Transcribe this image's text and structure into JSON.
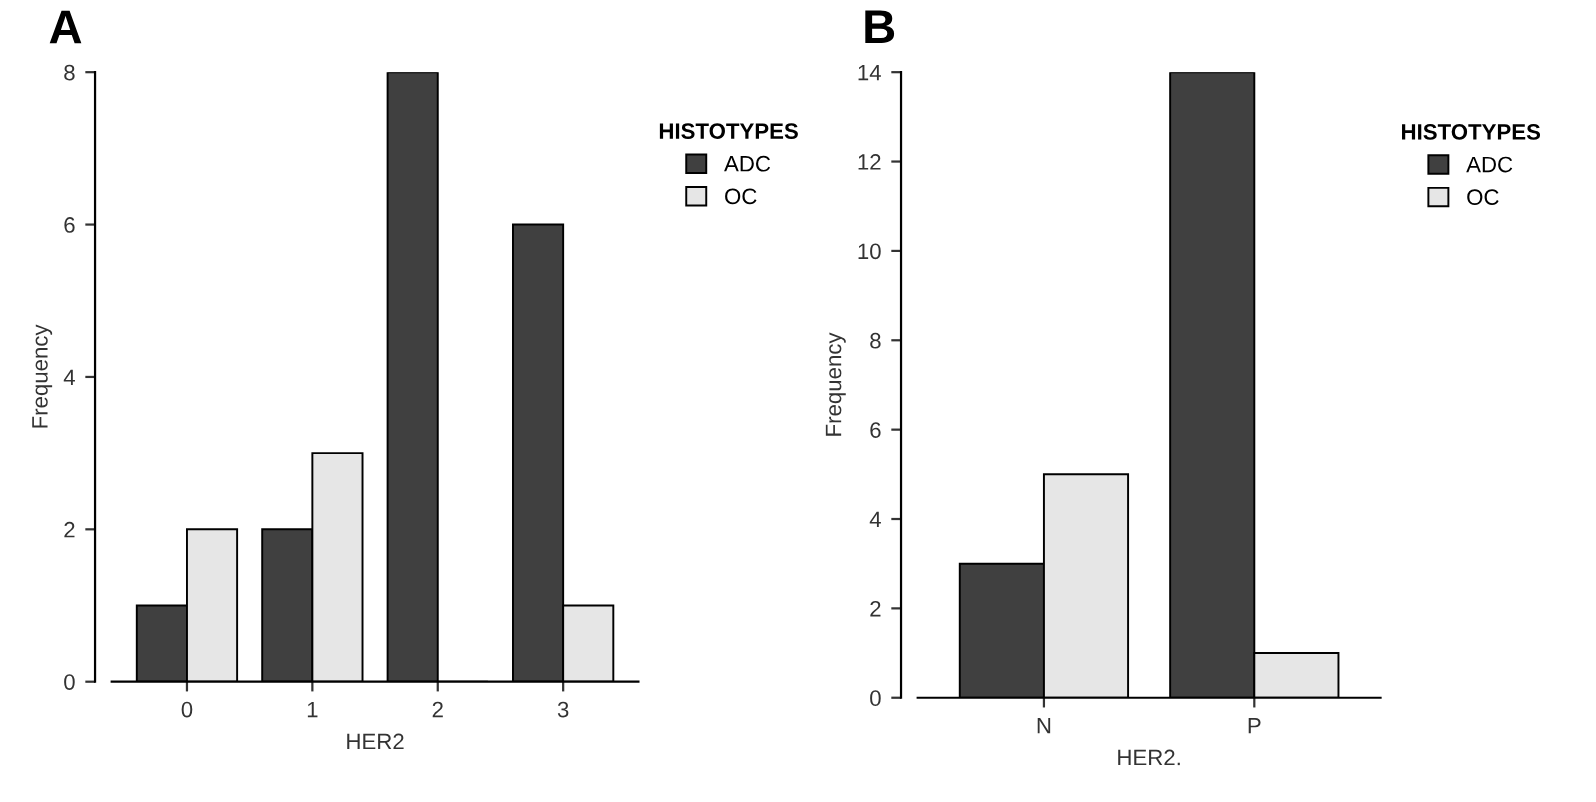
{
  "chart_data": [
    {
      "type": "bar",
      "title": "A",
      "xlabel": "HER2",
      "ylabel": "Frequency",
      "categories": [
        "0",
        "1",
        "2",
        "3"
      ],
      "series": [
        {
          "name": "ADC",
          "color": "#404040",
          "values": [
            1,
            2,
            8,
            6
          ]
        },
        {
          "name": "OC",
          "color": "#e6e6e6",
          "values": [
            2,
            3,
            0,
            1
          ]
        }
      ],
      "ylim": [
        0,
        8
      ],
      "yticks": [
        0,
        2,
        4,
        6,
        8
      ],
      "legend": "top right",
      "legend_title": "HISTOTYPES",
      "grid": false
    },
    {
      "type": "bar",
      "title": "B",
      "xlabel": "HER2.",
      "ylabel": "Frequency",
      "categories": [
        "N",
        "P"
      ],
      "series": [
        {
          "name": "ADC",
          "color": "#404040",
          "values": [
            3,
            14
          ]
        },
        {
          "name": "OC",
          "color": "#e6e6e6",
          "values": [
            5,
            1
          ]
        }
      ],
      "ylim": [
        0,
        14
      ],
      "yticks": [
        0,
        2,
        4,
        6,
        8,
        10,
        12,
        14
      ],
      "legend": "top right",
      "legend_title": "HISTOTYPES",
      "grid": false
    }
  ]
}
